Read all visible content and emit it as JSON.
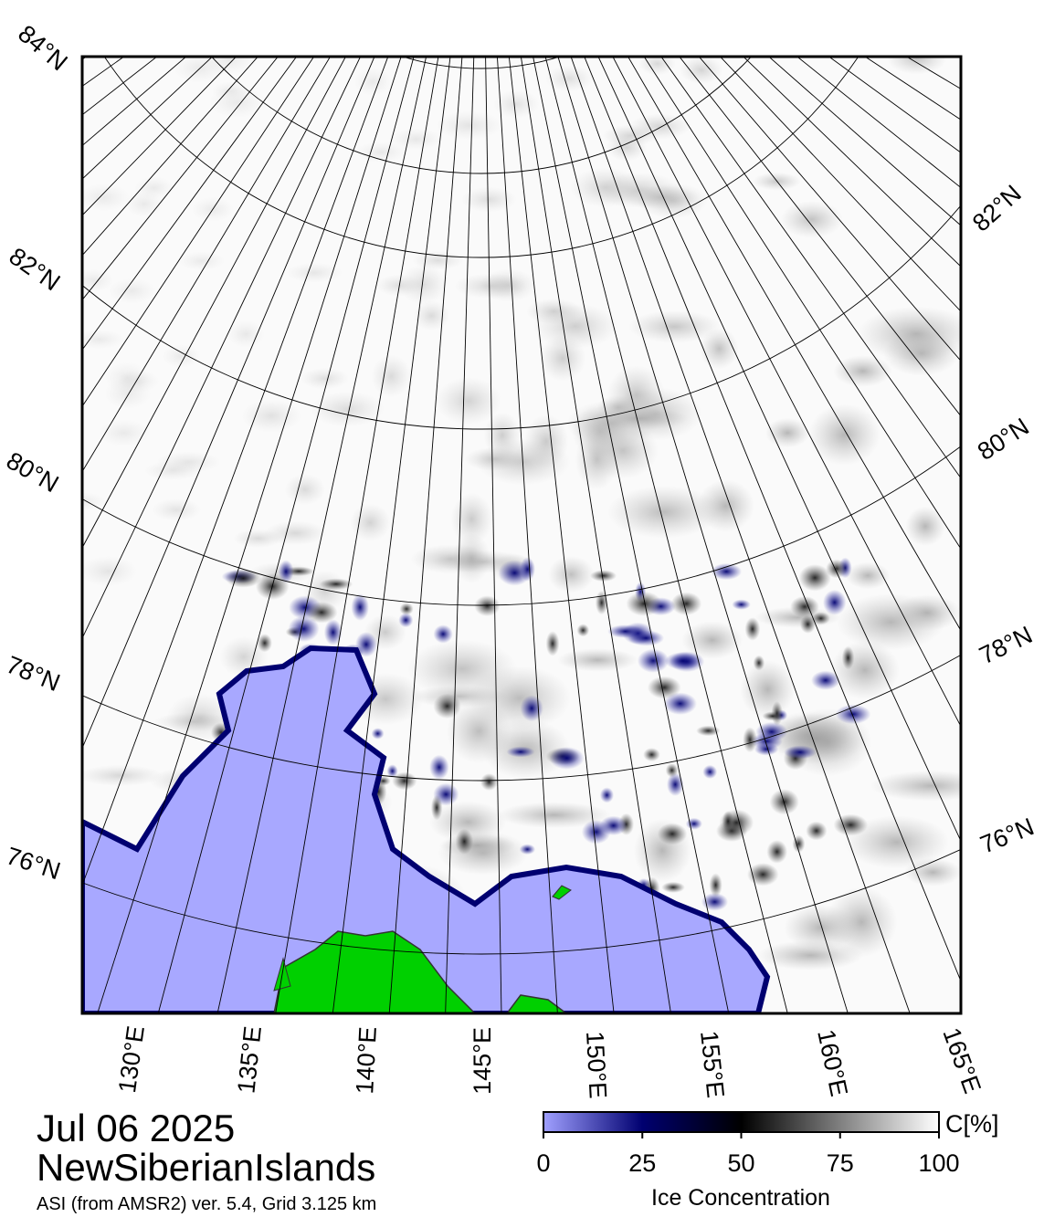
{
  "map": {
    "lat_labels_left": [
      "84°N",
      "82°N",
      "80°N",
      "78°N",
      "76°N"
    ],
    "lat_labels_right": [
      "82°N",
      "80°N",
      "78°N",
      "76°N"
    ],
    "lon_labels": [
      "130°E",
      "135°E",
      "140°E",
      "145°E",
      "150°E",
      "155°E",
      "160°E",
      "165°E"
    ]
  },
  "footer": {
    "date": "Jul 06 2025",
    "region": "NewSiberianIslands",
    "source": "ASI (from AMSR2) ver. 5.4,  Grid 3.125 km"
  },
  "colorbar": {
    "unit": "C[%]",
    "ticks": [
      0,
      25,
      50,
      75,
      100
    ],
    "title": "Ice Concentration"
  }
}
